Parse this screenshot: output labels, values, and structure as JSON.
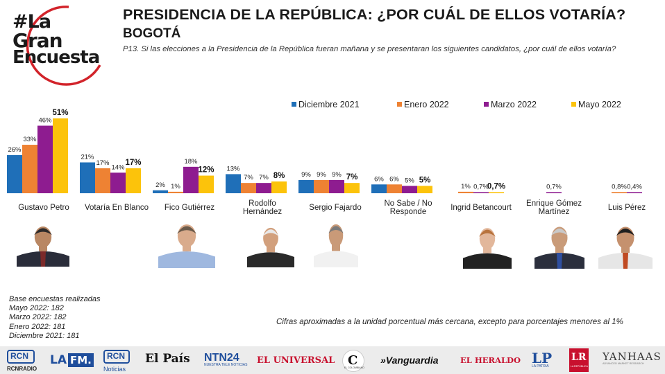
{
  "logo": {
    "line1": "#La",
    "line2": "Gran",
    "line3": "Encuesta",
    "ring_color": "#d2232a"
  },
  "title": "PRESIDENCIA DE LA REPÚBLICA: ¿POR CUÁL DE ELLOS VOTARÍA?",
  "subtitle": "BOGOTÁ",
  "question": "P13. Si las elecciones a la Presidencia de la República fueran mañana y se presentaran los siguientes candidatos, ¿por cuál de ellos votaría?",
  "chart_data": {
    "type": "bar",
    "title": "PRESIDENCIA DE LA REPÚBLICA: ¿POR CUÁL DE ELLOS VOTARÍA?",
    "categories": [
      "Gustavo Petro",
      "Votaría En Blanco",
      "Fico Gutiérrez",
      "Rodolfo Hernández",
      "Sergio Fajardo",
      "No Sabe / No Responde",
      "Ingrid Betancourt",
      "Enrique Gómez Martínez",
      "Luis Pérez"
    ],
    "category_lines": [
      [
        "Gustavo Petro"
      ],
      [
        "Votaría En Blanco"
      ],
      [
        "Fico Gutiérrez"
      ],
      [
        "Rodolfo",
        "Hernández"
      ],
      [
        "Sergio Fajardo"
      ],
      [
        "No Sabe / No",
        "Responde"
      ],
      [
        "Ingrid Betancourt"
      ],
      [
        "Enrique Gómez",
        "Martínez"
      ],
      [
        "Luis Pérez"
      ]
    ],
    "series": [
      {
        "name": "Diciembre 2021",
        "color": "#1f6fb8",
        "values": [
          26,
          21,
          2,
          13,
          9,
          6,
          null,
          null,
          null
        ],
        "labels": [
          "26%",
          "21%",
          "2%",
          "13%",
          "9%",
          "6%",
          "",
          "",
          ""
        ]
      },
      {
        "name": "Enero 2022",
        "color": "#ee8233",
        "values": [
          33,
          17,
          1,
          7,
          9,
          6,
          1,
          null,
          0.8
        ],
        "labels": [
          "33%",
          "17%",
          "1%",
          "7%",
          "9%",
          "6%",
          "1%",
          "",
          "0,8%"
        ]
      },
      {
        "name": "Marzo 2022",
        "color": "#8e1c90",
        "values": [
          46,
          14,
          18,
          7,
          9,
          5,
          0.7,
          0.7,
          0.4
        ],
        "labels": [
          "46%",
          "14%",
          "18%",
          "7%",
          "9%",
          "5%",
          "0,7%",
          "0,7%",
          "0,4%"
        ]
      },
      {
        "name": "Mayo 2022",
        "color": "#fcc30b",
        "values": [
          51,
          17,
          12,
          8,
          7,
          5,
          0.7,
          null,
          null
        ],
        "labels": [
          "51%",
          "17%",
          "12%",
          "8%",
          "7%",
          "5%",
          "0,7%",
          "",
          ""
        ]
      }
    ],
    "highlight_series": "Mayo 2022",
    "ylim": [
      0,
      55
    ],
    "grid": false,
    "legend": "top"
  },
  "photos": [
    {
      "name": "gustavo-petro-photo",
      "skin": "#b98763",
      "hair": "#2d2a2a",
      "shirt": "#2a2d3a",
      "tie": "#7b2a2a"
    },
    {
      "name": "fico-gutierrez-photo",
      "skin": "#d9ab8c",
      "hair": "#6a5a4a",
      "shirt": "#9fb8df",
      "tie": ""
    },
    {
      "name": "rodolfo-hernandez-photo",
      "skin": "#d2a07d",
      "hair": "#e9e9e9",
      "shirt": "#2a2a2a",
      "tie": ""
    },
    {
      "name": "sergio-fajardo-photo",
      "skin": "#c99a78",
      "hair": "#7a7a7a",
      "shirt": "#f1f1f1",
      "tie": ""
    },
    {
      "name": "ingrid-betancourt-photo",
      "skin": "#e2b79b",
      "hair": "#b8733d",
      "shirt": "#222222",
      "tie": ""
    },
    {
      "name": "enrique-gomez-photo",
      "skin": "#c99b79",
      "hair": "#c9c9c9",
      "shirt": "#2b2f3d",
      "tie": "#2f4fa0"
    },
    {
      "name": "luis-perez-photo",
      "skin": "#c5916e",
      "hair": "#1f1f1f",
      "shirt": "#e6e6e6",
      "tie": "#c04a22"
    }
  ],
  "base": {
    "heading": "Base encuestas realizadas",
    "lines": [
      "Mayo 2022: 182",
      "Marzo 2022: 182",
      "Enero 2022: 181",
      "Diciembre 2021: 181"
    ]
  },
  "note": "Cifras aproximadas a la unidad porcentual más cercana, excepto para porcentajes menores al 1%",
  "footer": {
    "bg": "#ececec",
    "brands": [
      "RCN",
      "RCNRADIO",
      "LA",
      "FM.",
      "RCN",
      "Noticias",
      "El País",
      "NTN24",
      "NUESTRA TELE NOTICIAS",
      "EL UNIVERSAL",
      "C",
      "EL COLOMBIANO",
      "»Vanguardia",
      "EL HERALDO",
      "LP",
      "LA PATRIA",
      "LR",
      "LA REPÚBLICA",
      "YANHAAS",
      "ADVANCED MARKET RESEARCH"
    ]
  }
}
